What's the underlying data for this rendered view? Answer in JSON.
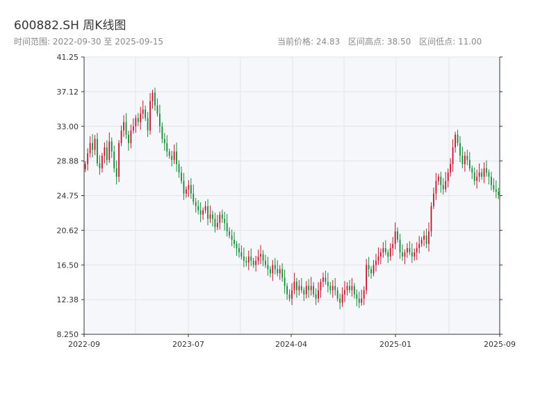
{
  "header": {
    "title": "600882.SH 周K线图",
    "range_label": "时间范围: 2022-09-30 至 2025-09-15",
    "current_price": "当前价格: 24.83",
    "high": "区间高点: 38.50",
    "low": "区间低点: 11.00"
  },
  "colors": {
    "up": "#c8102e",
    "down": "#138a36",
    "plot_bg": "#f6f7fa",
    "grid": "#e1e4ea",
    "axis": "#333333"
  },
  "chart_data": {
    "type": "candlestick",
    "title": "600882.SH 周K线图",
    "xlabel": "",
    "ylabel": "",
    "ylim": [
      8.25,
      41.25
    ],
    "y_ticks": [
      "8.250",
      "12.38",
      "16.50",
      "20.62",
      "24.75",
      "28.88",
      "33.00",
      "37.12",
      "41.25"
    ],
    "x_tick_labels": [
      "2022-09",
      "2023-07",
      "2024-04",
      "2025-01",
      "2025-09"
    ],
    "grid": true,
    "closes": [
      28.5,
      29.8,
      31.0,
      30.2,
      31.5,
      28.6,
      28.0,
      29.5,
      30.5,
      29.0,
      31.2,
      30.0,
      28.0,
      27.0,
      31.0,
      32.5,
      33.5,
      32.0,
      31.0,
      32.5,
      33.0,
      34.0,
      33.5,
      34.5,
      35.0,
      34.0,
      32.5,
      36.0,
      37.0,
      35.5,
      34.5,
      33.0,
      31.5,
      31.0,
      30.0,
      29.5,
      29.0,
      30.0,
      28.5,
      27.5,
      26.5,
      25.0,
      25.5,
      26.0,
      25.0,
      24.0,
      23.5,
      23.0,
      22.5,
      23.0,
      23.5,
      22.0,
      22.5,
      22.0,
      21.0,
      21.5,
      22.5,
      22.0,
      21.5,
      20.5,
      20.0,
      19.5,
      19.0,
      18.5,
      18.0,
      17.5,
      17.0,
      16.8,
      17.5,
      17.0,
      16.5,
      17.0,
      17.5,
      17.8,
      17.0,
      16.5,
      16.0,
      15.5,
      16.5,
      16.0,
      15.5,
      16.0,
      15.0,
      14.0,
      13.0,
      12.5,
      13.5,
      14.5,
      13.5,
      14.0,
      13.5,
      13.0,
      14.0,
      13.5,
      14.0,
      13.0,
      12.5,
      13.5,
      14.5,
      15.0,
      14.5,
      14.0,
      13.5,
      14.0,
      13.5,
      12.5,
      12.0,
      13.0,
      13.5,
      14.0,
      13.5,
      14.0,
      13.0,
      12.5,
      12.0,
      12.5,
      13.5,
      16.5,
      16.0,
      15.5,
      16.5,
      17.0,
      17.5,
      18.0,
      18.5,
      18.0,
      17.5,
      18.5,
      19.0,
      20.5,
      19.5,
      18.0,
      17.5,
      18.0,
      18.5,
      18.0,
      17.5,
      18.0,
      18.5,
      19.0,
      19.5,
      20.0,
      19.0,
      20.5,
      23.5,
      25.0,
      26.5,
      27.0,
      26.0,
      25.5,
      26.5,
      27.5,
      28.5,
      30.5,
      32.0,
      31.0,
      29.5,
      28.5,
      29.5,
      29.0,
      28.0,
      27.5,
      26.5,
      27.0,
      27.5,
      27.0,
      28.0,
      27.5,
      27.0,
      26.0,
      25.5,
      25.2,
      24.83
    ],
    "series": [
      {
        "name": "600882.SH"
      }
    ]
  }
}
